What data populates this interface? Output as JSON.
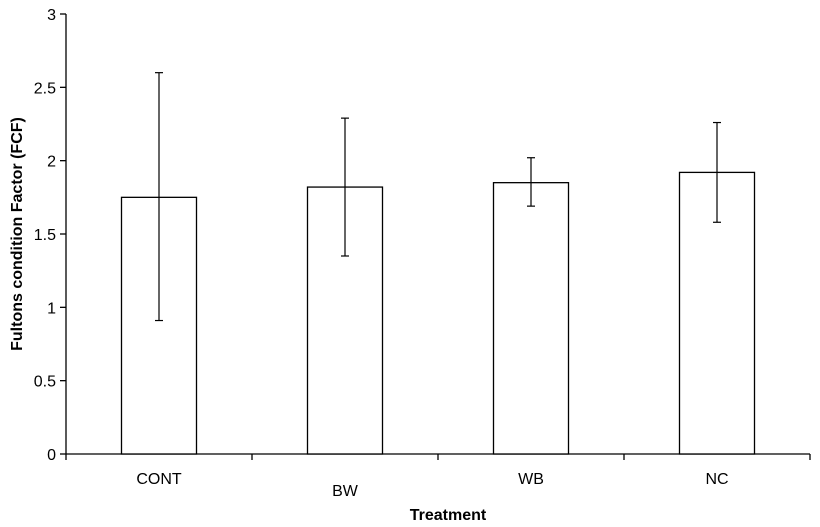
{
  "chart_data": {
    "type": "bar",
    "categories": [
      "CONT",
      "BW",
      "WB",
      "NC"
    ],
    "values": [
      1.75,
      1.82,
      1.85,
      1.92
    ],
    "error_bars": {
      "lower": [
        0.91,
        1.35,
        1.69,
        1.58
      ],
      "upper": [
        2.6,
        2.29,
        2.02,
        2.26
      ]
    },
    "xlabel": "Treatment",
    "ylabel": "Fultons condition Factor (FCF)",
    "ylim": [
      0,
      3
    ],
    "yticks": [
      0,
      0.5,
      1,
      1.5,
      2,
      2.5,
      3
    ],
    "ytick_labels": [
      "0",
      "0.5",
      "1",
      "1.5",
      "2",
      "2.5",
      "3"
    ],
    "grid": false,
    "legend": "none",
    "colors": {
      "bar_fill": "#ffffff",
      "bar_stroke": "#000000",
      "axis": "#000000"
    }
  }
}
